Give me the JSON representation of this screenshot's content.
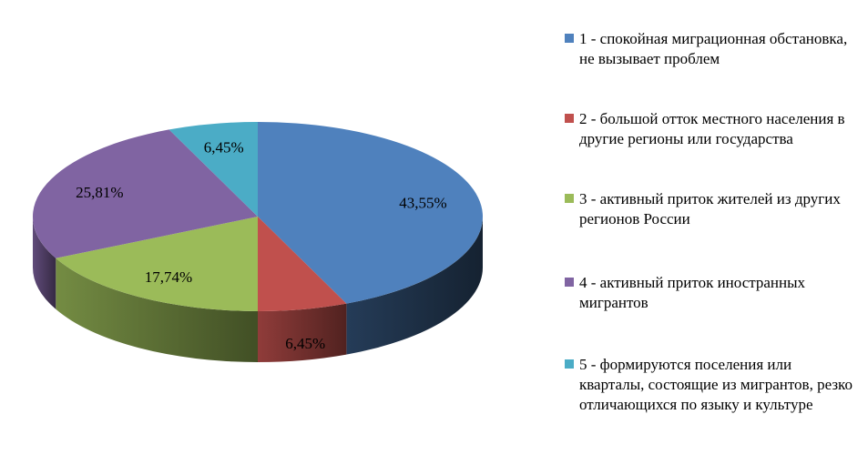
{
  "chart_data": {
    "type": "pie",
    "style": "3d",
    "slices": [
      {
        "category": "1",
        "value": 43.55,
        "label": "43,55%",
        "color": "#4F81BD"
      },
      {
        "category": "2",
        "value": 6.45,
        "label": "6,45%",
        "color": "#C0504D"
      },
      {
        "category": "3",
        "value": 17.74,
        "label": "17,74%",
        "color": "#9BBB59"
      },
      {
        "category": "4",
        "value": 25.81,
        "label": "25,81%",
        "color": "#8064A2"
      },
      {
        "category": "5",
        "value": 6.45,
        "label": "6,45%",
        "color": "#4BACC6"
      }
    ],
    "legend_position": "right",
    "legend": [
      {
        "text": "1 - спокойная миграционная обстановка, не вызывает проблем",
        "color": "#4F81BD"
      },
      {
        "text": "2 - большой отток местного населения в другие регионы или государства",
        "color": "#C0504D"
      },
      {
        "text": "3 - активный приток жителей из других регионов России",
        "color": "#9BBB59"
      },
      {
        "text": "4 - активный приток иностранных мигрантов",
        "color": "#8064A2"
      },
      {
        "text": "5 - формируются поселения или кварталы, состоящие из мигрантов, резко отличающихся по языку и культуре",
        "color": "#4BACC6"
      }
    ]
  }
}
